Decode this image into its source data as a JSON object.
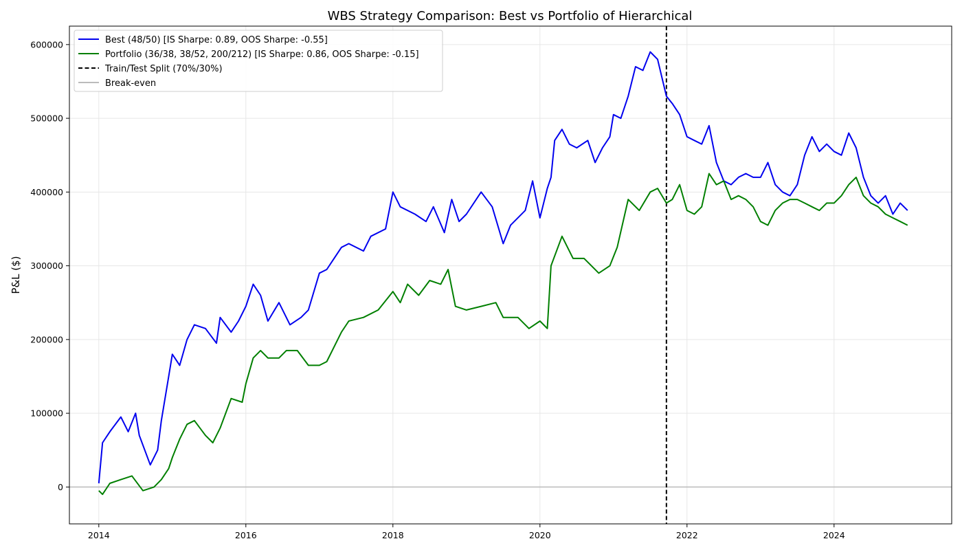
{
  "chart_data": {
    "type": "line",
    "title": "WBS Strategy Comparison: Best vs Portfolio of Hierarchical",
    "xlabel": "",
    "ylabel": "P&L ($)",
    "x_ticks": [
      "2014",
      "2016",
      "2018",
      "2020",
      "2022",
      "2024"
    ],
    "y_ticks": [
      "0",
      "100000",
      "200000",
      "300000",
      "400000",
      "500000",
      "600000"
    ],
    "xlim": [
      2013.6,
      2025.6
    ],
    "ylim": [
      -50000,
      625000
    ],
    "grid": true,
    "legend_position": "upper-left",
    "split": {
      "x": 2021.72,
      "label": "Train/Test Split (70%/30%)"
    },
    "breakeven": {
      "y": 0,
      "label": "Break-even"
    },
    "series": [
      {
        "name": "Best (48/50) [IS Sharpe: 0.89, OOS Sharpe: -0.55]",
        "color": "#0000ee",
        "x": [
          2014.0,
          2014.05,
          2014.15,
          2014.3,
          2014.4,
          2014.5,
          2014.55,
          2014.7,
          2014.8,
          2014.85,
          2014.95,
          2015.0,
          2015.1,
          2015.2,
          2015.3,
          2015.45,
          2015.6,
          2015.65,
          2015.8,
          2015.9,
          2016.0,
          2016.1,
          2016.2,
          2016.3,
          2016.45,
          2016.6,
          2016.75,
          2016.85,
          2017.0,
          2017.1,
          2017.3,
          2017.4,
          2017.6,
          2017.7,
          2017.9,
          2018.0,
          2018.1,
          2018.3,
          2018.45,
          2018.55,
          2018.7,
          2018.8,
          2018.9,
          2019.0,
          2019.2,
          2019.35,
          2019.5,
          2019.6,
          2019.8,
          2019.9,
          2020.0,
          2020.1,
          2020.15,
          2020.2,
          2020.3,
          2020.4,
          2020.5,
          2020.65,
          2020.75,
          2020.85,
          2020.95,
          2021.0,
          2021.1,
          2021.2,
          2021.3,
          2021.4,
          2021.5,
          2021.6,
          2021.72,
          2021.8,
          2021.9,
          2022.0,
          2022.1,
          2022.2,
          2022.3,
          2022.4,
          2022.5,
          2022.6,
          2022.7,
          2022.8,
          2022.9,
          2023.0,
          2023.1,
          2023.2,
          2023.3,
          2023.4,
          2023.5,
          2023.6,
          2023.7,
          2023.8,
          2023.9,
          2024.0,
          2024.1,
          2024.2,
          2024.3,
          2024.4,
          2024.5,
          2024.6,
          2024.7,
          2024.8,
          2024.9,
          2025.0
        ],
        "y": [
          5000,
          60000,
          75000,
          95000,
          75000,
          100000,
          70000,
          30000,
          50000,
          90000,
          150000,
          180000,
          165000,
          200000,
          220000,
          215000,
          195000,
          230000,
          210000,
          225000,
          245000,
          275000,
          260000,
          225000,
          250000,
          220000,
          230000,
          240000,
          290000,
          295000,
          325000,
          330000,
          320000,
          340000,
          350000,
          400000,
          380000,
          370000,
          360000,
          380000,
          345000,
          390000,
          360000,
          370000,
          400000,
          380000,
          330000,
          355000,
          375000,
          415000,
          365000,
          405000,
          420000,
          470000,
          485000,
          465000,
          460000,
          470000,
          440000,
          460000,
          475000,
          505000,
          500000,
          530000,
          570000,
          565000,
          590000,
          580000,
          530000,
          520000,
          505000,
          475000,
          470000,
          465000,
          490000,
          440000,
          415000,
          410000,
          420000,
          425000,
          420000,
          420000,
          440000,
          410000,
          400000,
          395000,
          410000,
          450000,
          475000,
          455000,
          465000,
          455000,
          450000,
          480000,
          460000,
          420000,
          395000,
          385000,
          395000,
          370000,
          385000,
          375000
        ]
      },
      {
        "name": "Portfolio (36/38, 38/52, 200/212) [IS Sharpe: 0.86, OOS Sharpe: -0.15]",
        "color": "#007f00",
        "x": [
          2014.0,
          2014.05,
          2014.15,
          2014.3,
          2014.45,
          2014.6,
          2014.75,
          2014.85,
          2014.95,
          2015.0,
          2015.1,
          2015.2,
          2015.3,
          2015.45,
          2015.55,
          2015.65,
          2015.8,
          2015.95,
          2016.0,
          2016.1,
          2016.2,
          2016.3,
          2016.45,
          2016.55,
          2016.7,
          2016.85,
          2017.0,
          2017.1,
          2017.3,
          2017.4,
          2017.6,
          2017.8,
          2018.0,
          2018.1,
          2018.2,
          2018.35,
          2018.5,
          2018.65,
          2018.75,
          2018.85,
          2019.0,
          2019.2,
          2019.4,
          2019.5,
          2019.7,
          2019.85,
          2020.0,
          2020.1,
          2020.15,
          2020.3,
          2020.45,
          2020.6,
          2020.8,
          2020.95,
          2021.05,
          2021.2,
          2021.35,
          2021.5,
          2021.6,
          2021.72,
          2021.8,
          2021.9,
          2022.0,
          2022.1,
          2022.2,
          2022.3,
          2022.4,
          2022.5,
          2022.6,
          2022.7,
          2022.8,
          2022.9,
          2023.0,
          2023.1,
          2023.2,
          2023.3,
          2023.4,
          2023.5,
          2023.6,
          2023.7,
          2023.8,
          2023.9,
          2024.0,
          2024.1,
          2024.2,
          2024.3,
          2024.4,
          2024.5,
          2024.6,
          2024.7,
          2024.8,
          2024.9,
          2025.0
        ],
        "y": [
          -5000,
          -10000,
          5000,
          10000,
          15000,
          -5000,
          0,
          10000,
          25000,
          40000,
          65000,
          85000,
          90000,
          70000,
          60000,
          80000,
          120000,
          115000,
          140000,
          175000,
          185000,
          175000,
          175000,
          185000,
          185000,
          165000,
          165000,
          170000,
          210000,
          225000,
          230000,
          240000,
          265000,
          250000,
          275000,
          260000,
          280000,
          275000,
          295000,
          245000,
          240000,
          245000,
          250000,
          230000,
          230000,
          215000,
          225000,
          215000,
          300000,
          340000,
          310000,
          310000,
          290000,
          300000,
          325000,
          390000,
          375000,
          400000,
          405000,
          385000,
          390000,
          410000,
          375000,
          370000,
          380000,
          425000,
          410000,
          415000,
          390000,
          395000,
          390000,
          380000,
          360000,
          355000,
          375000,
          385000,
          390000,
          390000,
          385000,
          380000,
          375000,
          385000,
          385000,
          395000,
          410000,
          420000,
          395000,
          385000,
          380000,
          370000,
          365000,
          360000,
          355000
        ]
      }
    ]
  }
}
